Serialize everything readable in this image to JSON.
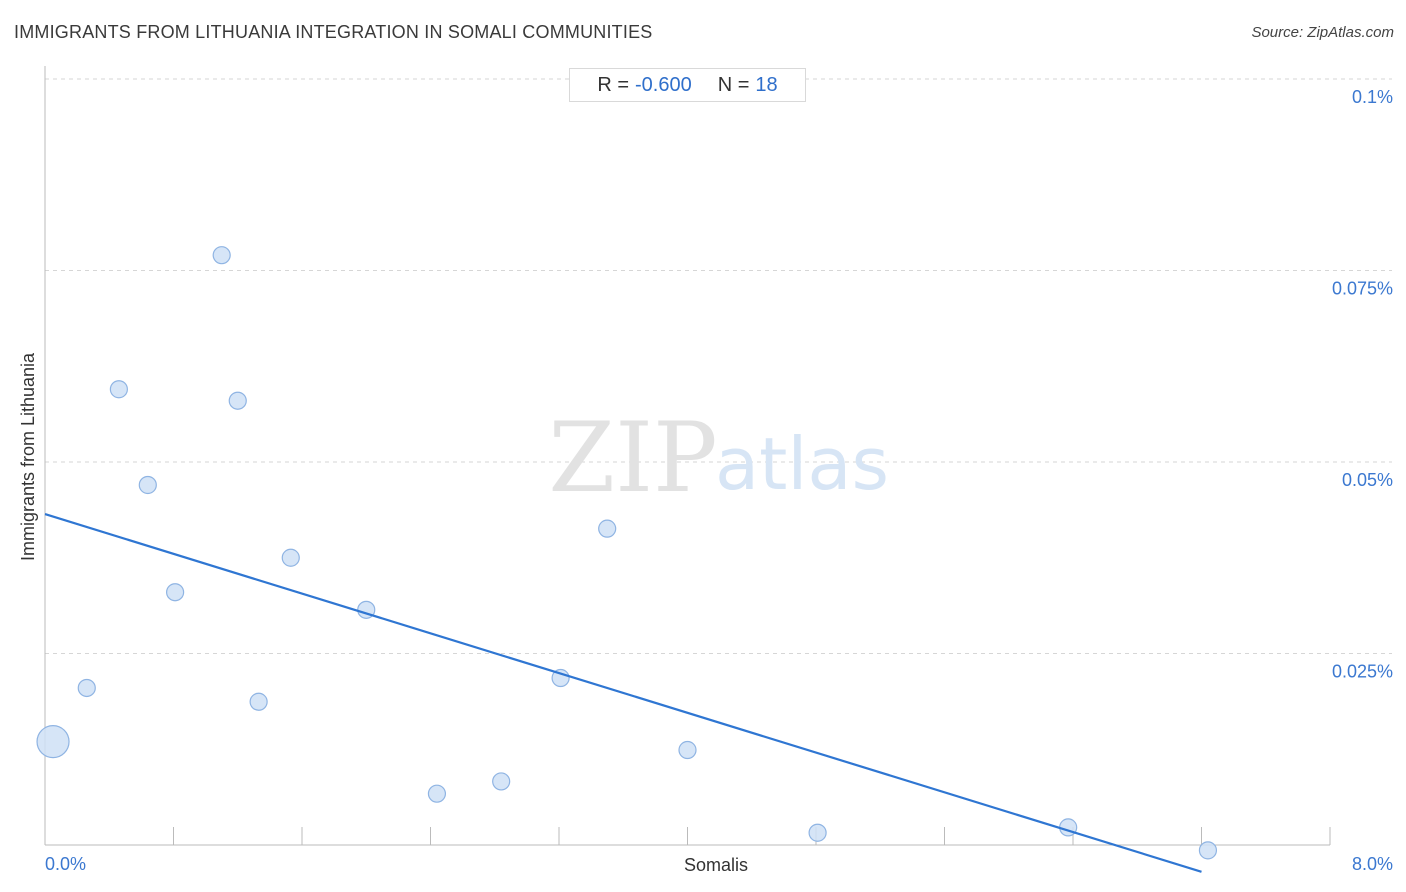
{
  "title": "IMMIGRANTS FROM LITHUANIA INTEGRATION IN SOMALI COMMUNITIES",
  "source": "Source: ZipAtlas.com",
  "stats": {
    "r_label": "R =",
    "r_value": "-0.600",
    "n_label": "N =",
    "n_value": "18"
  },
  "watermark": {
    "zip": "ZIP",
    "atlas": "atlas"
  },
  "colors": {
    "point_fill": "#cfe0f6",
    "point_stroke": "#8fb4e3",
    "trend": "#2f76d2",
    "tick_label": "#3b78d0",
    "grid": "#d6d6d6"
  },
  "chart_data": {
    "type": "scatter",
    "title": "IMMIGRANTS FROM LITHUANIA INTEGRATION IN SOMALI COMMUNITIES",
    "xlabel": "Somalis",
    "ylabel": "Immigrants from Lithuania",
    "xlim": [
      0,
      8
    ],
    "ylim": [
      0,
      0.1
    ],
    "x_tick_labels": [
      {
        "value": 0,
        "label": "0.0%"
      },
      {
        "value": 8,
        "label": "8.0%"
      }
    ],
    "y_tick_labels": [
      {
        "value": 0.025,
        "label": "0.025%"
      },
      {
        "value": 0.05,
        "label": "0.05%"
      },
      {
        "value": 0.075,
        "label": "0.075%"
      },
      {
        "value": 0.1,
        "label": "0.1%"
      }
    ],
    "grid": "horizontal dashed",
    "points": [
      {
        "x": 0.05,
        "y": 0.0135,
        "size": "large"
      },
      {
        "x": 0.26,
        "y": 0.0205
      },
      {
        "x": 0.46,
        "y": 0.0595
      },
      {
        "x": 0.64,
        "y": 0.047
      },
      {
        "x": 0.81,
        "y": 0.033
      },
      {
        "x": 1.1,
        "y": 0.077
      },
      {
        "x": 1.2,
        "y": 0.058
      },
      {
        "x": 1.33,
        "y": 0.0187
      },
      {
        "x": 1.53,
        "y": 0.0375
      },
      {
        "x": 2.0,
        "y": 0.0307
      },
      {
        "x": 2.44,
        "y": 0.0067
      },
      {
        "x": 2.84,
        "y": 0.0083
      },
      {
        "x": 3.21,
        "y": 0.0218
      },
      {
        "x": 3.5,
        "y": 0.0413
      },
      {
        "x": 4.0,
        "y": 0.0124
      },
      {
        "x": 4.81,
        "y": 0.0016
      },
      {
        "x": 6.37,
        "y": 0.0023
      },
      {
        "x": 7.24,
        "y": -0.0007
      }
    ],
    "trendline": {
      "x": [
        0,
        7.2
      ],
      "y": [
        0.0432,
        -0.0035
      ]
    }
  }
}
